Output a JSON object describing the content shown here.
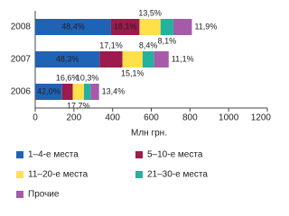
{
  "chart_data": {
    "type": "stacked-bar-horizontal",
    "categories": [
      "2008",
      "2007",
      "2006"
    ],
    "x_label": "Млн грн.",
    "xlim": [
      0,
      1200
    ],
    "xticks": [
      0,
      200,
      400,
      600,
      800,
      1000,
      1200
    ],
    "series": [
      {
        "name": "1–4-е места",
        "color": "#1f63b5",
        "values": [
          392,
          333,
          139
        ],
        "value_labels": [
          "48,4%",
          "48,3%",
          "42,0%"
        ]
      },
      {
        "name": "5–10-е места",
        "color": "#9c1a4c",
        "values": [
          147,
          118,
          55
        ],
        "value_labels": [
          "18,1%",
          "17,1%",
          "16,6%"
        ]
      },
      {
        "name": "11–20-е места",
        "color": "#ffe04a",
        "values": [
          109,
          104,
          58
        ],
        "value_labels": [
          "13,5%",
          "15,1%",
          "17,7%"
        ]
      },
      {
        "name": "21–30-е места",
        "color": "#22b39e",
        "values": [
          66,
          58,
          34
        ],
        "value_labels": [
          "8,1%",
          "8,4%",
          "10,3%"
        ]
      },
      {
        "name": "Прочие",
        "color": "#a65aa8",
        "values": [
          96,
          77,
          44
        ],
        "value_labels": [
          "11,9%",
          "11,1%",
          "13,4%"
        ]
      }
    ]
  }
}
